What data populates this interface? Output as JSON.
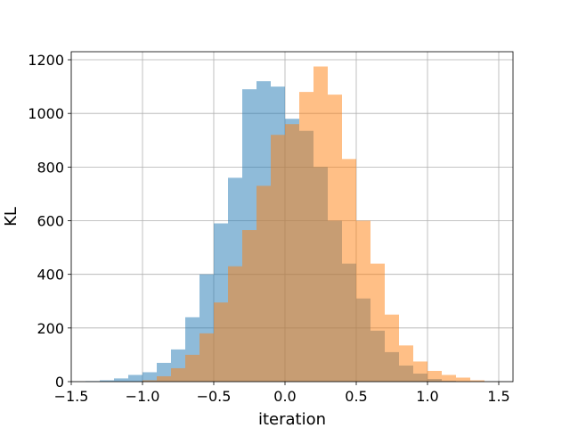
{
  "chart_data": {
    "type": "histogram",
    "title": "",
    "xlabel": "iteration",
    "ylabel": "KL",
    "xlim": [
      -1.5,
      1.6
    ],
    "ylim": [
      0,
      1230
    ],
    "xticks": [
      -1.5,
      -1.0,
      -0.5,
      0.0,
      0.5,
      1.0,
      1.5
    ],
    "xtick_labels": [
      "−1.5",
      "−1.0",
      "−0.5",
      "0.0",
      "0.5",
      "1.0",
      "1.5"
    ],
    "yticks": [
      0,
      200,
      400,
      600,
      800,
      1000,
      1200
    ],
    "ytick_labels": [
      "0",
      "200",
      "400",
      "600",
      "800",
      "1000",
      "1200"
    ],
    "grid": true,
    "legend": "none",
    "series": [
      {
        "color": "#1f77b4",
        "opacity": 0.5,
        "bins": [
          [
            -1.4,
            -1.3,
            2
          ],
          [
            -1.3,
            -1.2,
            5
          ],
          [
            -1.2,
            -1.1,
            12
          ],
          [
            -1.1,
            -1.0,
            25
          ],
          [
            -1.0,
            -0.9,
            35
          ],
          [
            -0.9,
            -0.8,
            70
          ],
          [
            -0.8,
            -0.7,
            120
          ],
          [
            -0.7,
            -0.6,
            240
          ],
          [
            -0.6,
            -0.5,
            400
          ],
          [
            -0.5,
            -0.4,
            590
          ],
          [
            -0.4,
            -0.3,
            760
          ],
          [
            -0.3,
            -0.2,
            1090
          ],
          [
            -0.2,
            -0.1,
            1120
          ],
          [
            -0.1,
            0.0,
            1100
          ],
          [
            0.0,
            0.1,
            980
          ],
          [
            0.1,
            0.2,
            935
          ],
          [
            0.2,
            0.3,
            800
          ],
          [
            0.3,
            0.4,
            600
          ],
          [
            0.4,
            0.5,
            440
          ],
          [
            0.5,
            0.6,
            310
          ],
          [
            0.6,
            0.7,
            190
          ],
          [
            0.7,
            0.8,
            110
          ],
          [
            0.8,
            0.9,
            60
          ],
          [
            0.9,
            1.0,
            30
          ],
          [
            1.0,
            1.1,
            10
          ],
          [
            1.1,
            1.2,
            3
          ]
        ]
      },
      {
        "color": "#ff7f0e",
        "opacity": 0.5,
        "bins": [
          [
            -1.0,
            -0.9,
            5
          ],
          [
            -0.9,
            -0.8,
            20
          ],
          [
            -0.8,
            -0.7,
            50
          ],
          [
            -0.7,
            -0.6,
            100
          ],
          [
            -0.6,
            -0.5,
            180
          ],
          [
            -0.5,
            -0.4,
            295
          ],
          [
            -0.4,
            -0.3,
            430
          ],
          [
            -0.3,
            -0.2,
            565
          ],
          [
            -0.2,
            -0.1,
            730
          ],
          [
            -0.1,
            0.0,
            920
          ],
          [
            0.0,
            0.1,
            960
          ],
          [
            0.1,
            0.2,
            1080
          ],
          [
            0.2,
            0.3,
            1175
          ],
          [
            0.3,
            0.4,
            1070
          ],
          [
            0.4,
            0.5,
            830
          ],
          [
            0.5,
            0.6,
            600
          ],
          [
            0.6,
            0.7,
            440
          ],
          [
            0.7,
            0.8,
            250
          ],
          [
            0.8,
            0.9,
            135
          ],
          [
            0.9,
            1.0,
            75
          ],
          [
            1.0,
            1.1,
            40
          ],
          [
            1.1,
            1.2,
            25
          ],
          [
            1.2,
            1.3,
            15
          ],
          [
            1.3,
            1.4,
            5
          ]
        ]
      }
    ]
  }
}
